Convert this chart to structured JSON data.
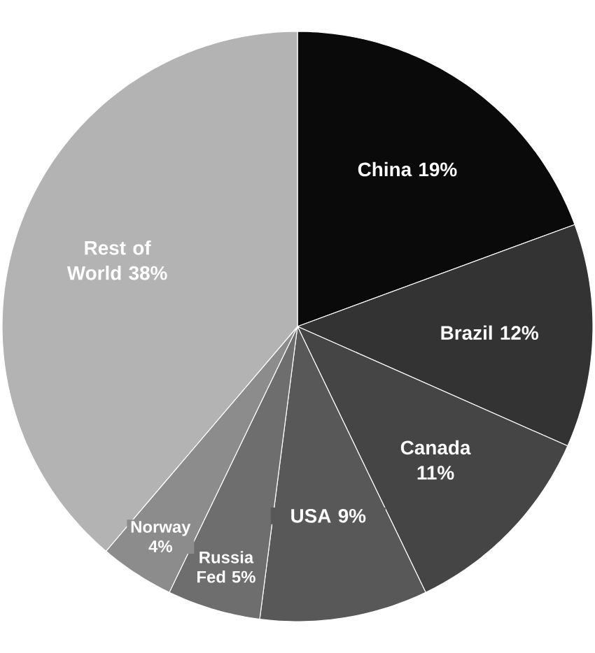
{
  "chart_data": {
    "type": "pie",
    "categories": [
      "China",
      "Brazil",
      "Canada",
      "USA",
      "Russia Fed",
      "Norway",
      "Rest of World"
    ],
    "values": [
      19,
      12,
      11,
      9,
      5,
      4,
      38
    ],
    "value_labels": [
      "19%",
      "12%",
      "11%",
      "9%",
      "5%",
      "4%",
      "38%"
    ],
    "colors": [
      "#0a0a0a",
      "#333333",
      "#454545",
      "#585858",
      "#6e6e6e",
      "#8c8c8c",
      "#b3b3b3"
    ]
  }
}
